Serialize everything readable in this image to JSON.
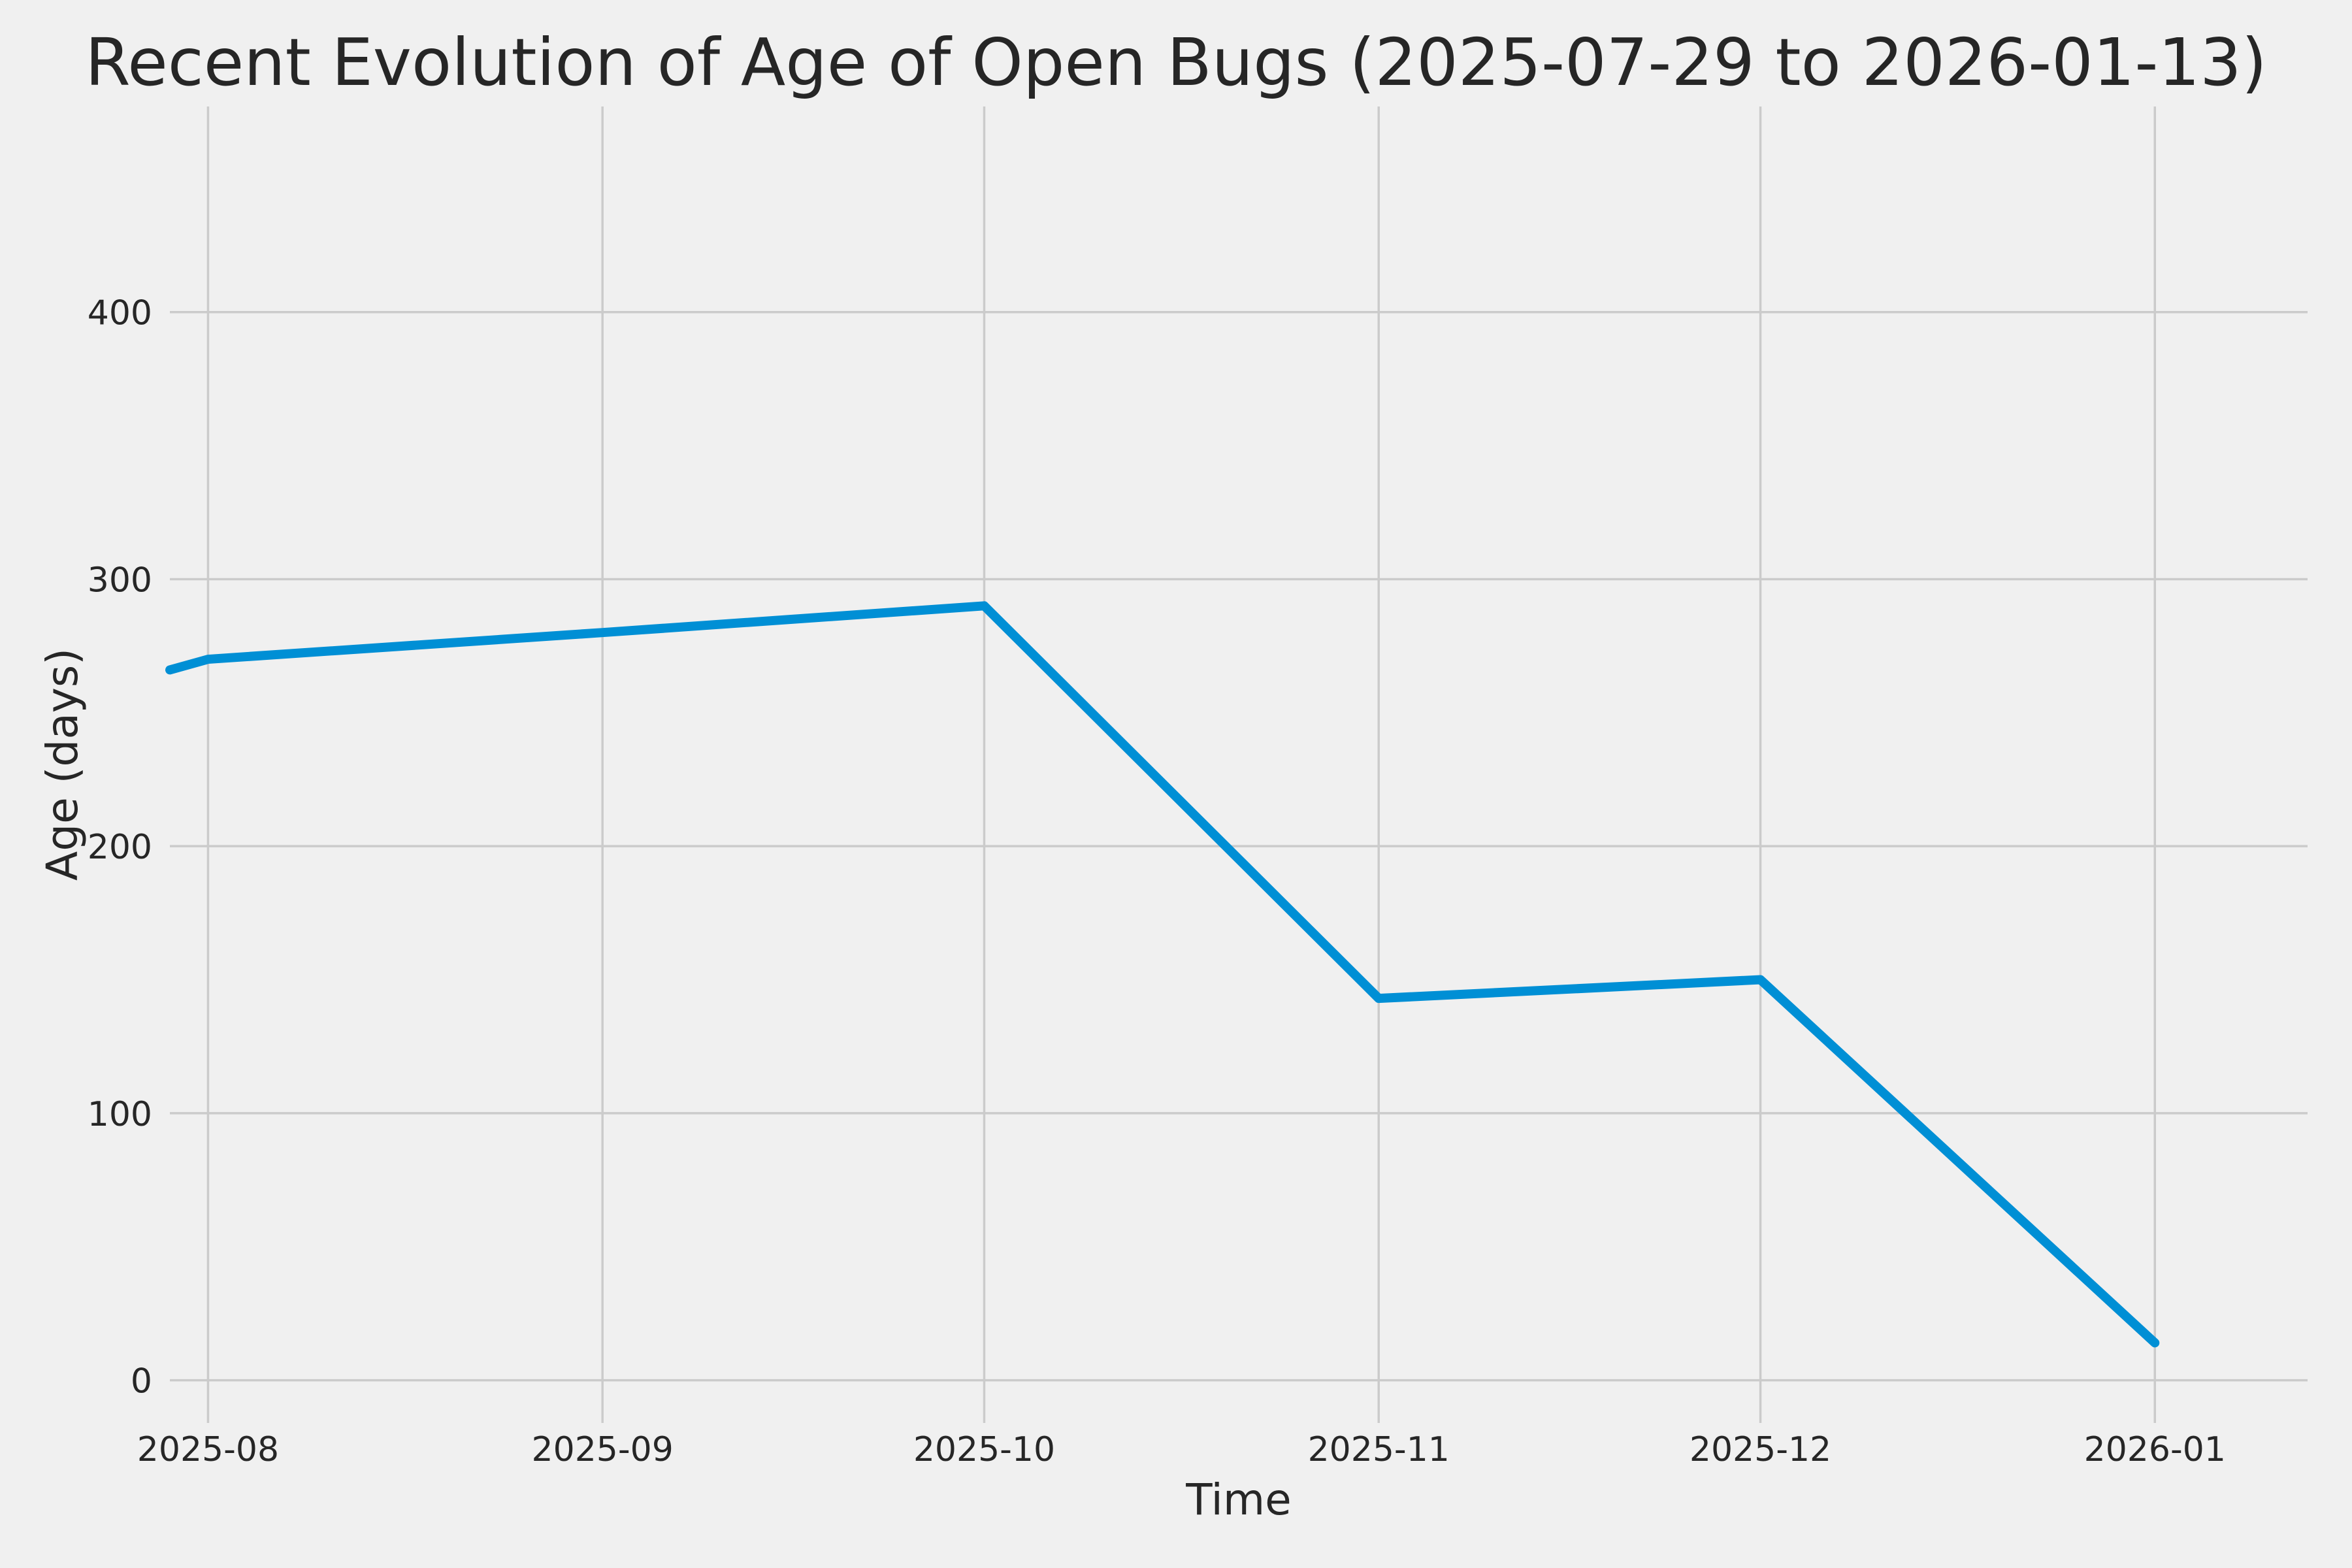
{
  "chart_data": {
    "type": "line",
    "title": "Recent Evolution of Age of Open Bugs (2025-07-29 to 2026-01-13)",
    "xlabel": "Time",
    "ylabel": "Age (days)",
    "x_range": {
      "start": "2025-07-29",
      "end": "2026-01-13"
    },
    "ylim": [
      -16,
      477
    ],
    "grid": true,
    "legend_position": "none",
    "x_ticks": [
      {
        "label": "2025-08",
        "date": "2025-08-01"
      },
      {
        "label": "2025-09",
        "date": "2025-09-01"
      },
      {
        "label": "2025-10",
        "date": "2025-10-01"
      },
      {
        "label": "2025-11",
        "date": "2025-11-01"
      },
      {
        "label": "2025-12",
        "date": "2025-12-01"
      },
      {
        "label": "2026-01",
        "date": "2026-01-01"
      }
    ],
    "y_ticks": [
      0,
      100,
      200,
      300,
      400
    ],
    "series": [
      {
        "color": "#008FD5",
        "points": [
          {
            "date": "2025-07-29",
            "value": 266
          },
          {
            "date": "2025-08-01",
            "value": 270
          },
          {
            "date": "2025-09-01",
            "value": 280
          },
          {
            "date": "2025-10-01",
            "value": 290
          },
          {
            "date": "2025-11-01",
            "value": 143
          },
          {
            "date": "2025-12-01",
            "value": 150
          },
          {
            "date": "2026-01-01",
            "value": 14
          }
        ]
      }
    ],
    "colors": {
      "background": "#F0F0F0",
      "grid": "#CBCBCB",
      "text": "#262626",
      "line": "#008FD5"
    }
  }
}
